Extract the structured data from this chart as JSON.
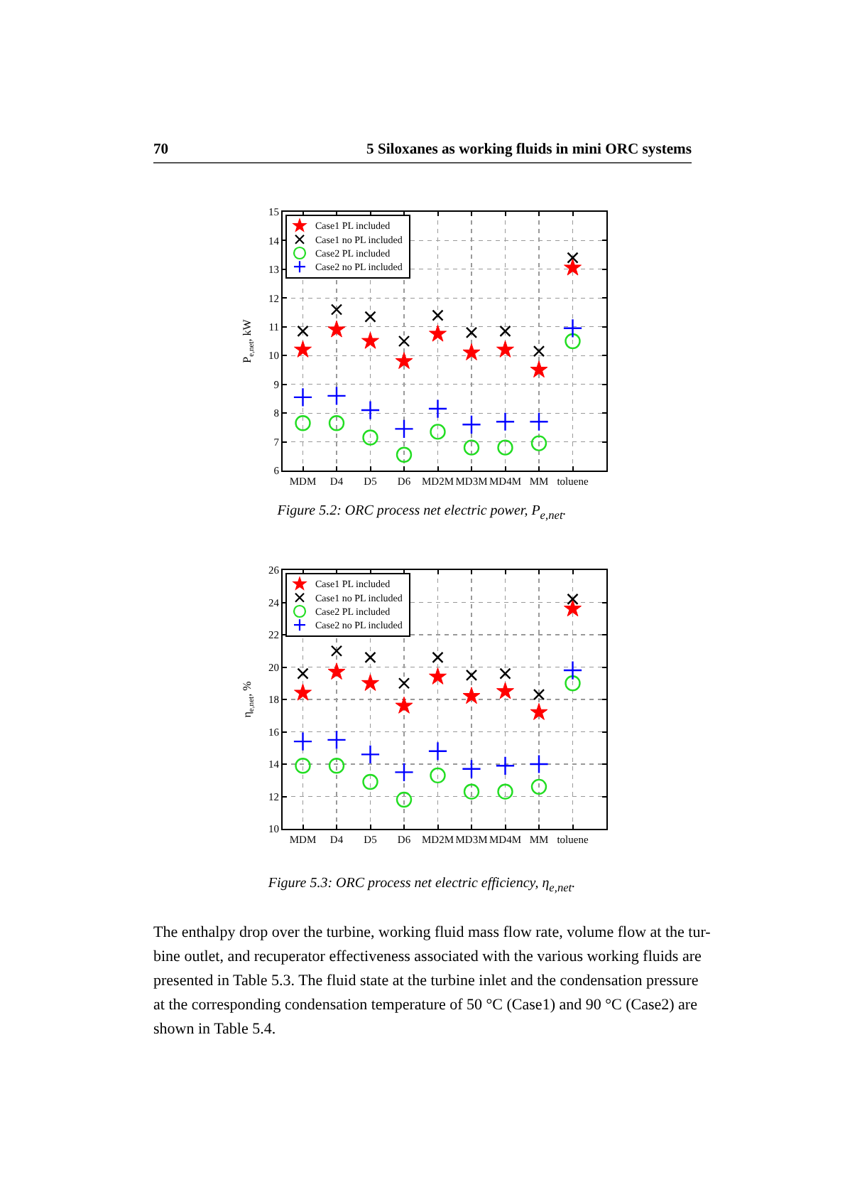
{
  "chart_data": [
    {
      "type": "scatter",
      "ylabel": "P$_{e,net}$, kW",
      "categories": [
        "MDM",
        "D4",
        "D5",
        "D6",
        "MD2M",
        "MD3M",
        "MD4M",
        "MM",
        "toluene"
      ],
      "series": [
        {
          "name": "Case1 PL included",
          "color": "#ff0000",
          "marker": "star",
          "values": [
            10.2,
            10.9,
            10.5,
            9.8,
            10.75,
            10.1,
            10.2,
            9.5,
            13.05
          ]
        },
        {
          "name": "Case1 no PL included",
          "color": "#000000",
          "marker": "x",
          "values": [
            10.85,
            11.6,
            11.35,
            10.5,
            11.4,
            10.8,
            10.85,
            10.15,
            13.4
          ]
        },
        {
          "name": "Case2 PL included",
          "color": "#22dd22",
          "marker": "circle",
          "values": [
            7.65,
            7.65,
            7.15,
            6.55,
            7.35,
            6.8,
            6.8,
            6.95,
            10.5
          ]
        },
        {
          "name": "Case2 no PL included",
          "color": "#0000ff",
          "marker": "cross",
          "values": [
            8.55,
            8.6,
            8.1,
            7.45,
            8.15,
            7.6,
            7.7,
            7.7,
            10.95
          ]
        }
      ],
      "ylim": [
        6,
        15
      ],
      "yticks": [
        6,
        7,
        8,
        9,
        10,
        11,
        12,
        13,
        14,
        15
      ],
      "grid": true,
      "legend": "top left",
      "annotations": [
        "70",
        "5 Siloxanes as working fluids in mini ORC systems",
        "Figure 5.2: ORC process net electric power, P$_{e,net}$."
      ]
    },
    {
      "type": "scatter",
      "ylabel": "η$_{e,net}$, %",
      "categories": [
        "MDM",
        "D4",
        "D5",
        "D6",
        "MD2M",
        "MD3M",
        "MD4M",
        "MM",
        "toluene"
      ],
      "series": [
        {
          "name": "Case1 PL included",
          "color": "#ff0000",
          "marker": "star",
          "values": [
            18.4,
            19.7,
            19.0,
            17.6,
            19.4,
            18.2,
            18.5,
            17.2,
            23.6
          ]
        },
        {
          "name": "Case1 no PL included",
          "color": "#000000",
          "marker": "x",
          "values": [
            19.6,
            21.0,
            20.6,
            19.0,
            20.6,
            19.5,
            19.6,
            18.3,
            24.2
          ]
        },
        {
          "name": "Case2 PL included",
          "color": "#22dd22",
          "marker": "circle",
          "values": [
            13.9,
            13.9,
            12.9,
            11.8,
            13.3,
            12.3,
            12.3,
            12.6,
            19.0
          ]
        },
        {
          "name": "Case2 no PL included",
          "color": "#0000ff",
          "marker": "cross",
          "values": [
            15.4,
            15.5,
            14.6,
            13.5,
            14.8,
            13.7,
            13.9,
            14.0,
            19.8
          ]
        }
      ],
      "ylim": [
        10,
        26
      ],
      "yticks": [
        10,
        12,
        14,
        16,
        18,
        20,
        22,
        24,
        26
      ],
      "grid": true,
      "legend": "top left",
      "annotations": [
        "Figure 5.3: ORC process net electric efficiency, η$_{e,net}$.",
        "The enthalpy drop over the turbine, working fluid mass flow rate, volume flow at the tur-\nbine outlet, and recuperator effectiveness associated with the various working fluids are\npresented in Table 5.3. The fluid state at the turbine inlet and the condensation pressure\nat the corresponding condensation temperature of 50 °C (Case1) and 90 °C (Case2) are\nshown in Table 5.4."
      ]
    }
  ]
}
